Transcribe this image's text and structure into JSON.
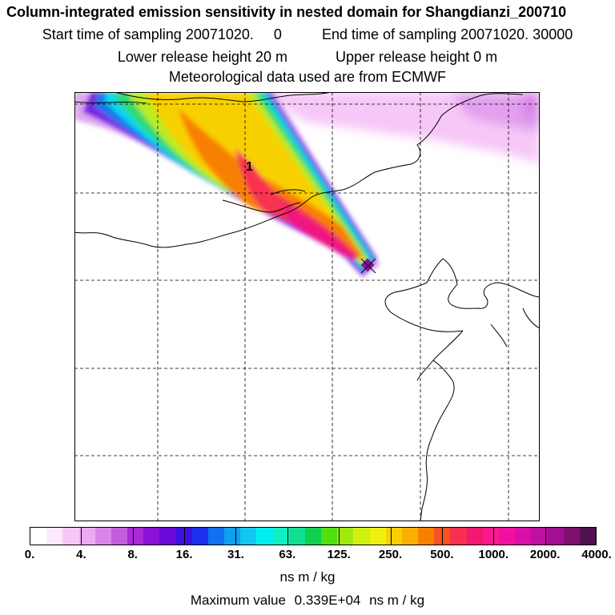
{
  "header": {
    "title": "Column-integrated emission sensitivity in nested domain for Shangdianzi_200710",
    "start_label": "Start time of sampling",
    "start_value": "20071020.     0",
    "end_label": "End time of sampling",
    "end_value": "20071020. 30000",
    "lower_label": "Lower release height",
    "lower_value": "20 m",
    "upper_label": "Upper release height",
    "upper_value": "0 m",
    "met_line": "Meteorological data used are from ECMWF"
  },
  "map": {
    "release_marker_label": "1",
    "grid_lines": "dashed"
  },
  "colorbar": {
    "colors": [
      "#ffffff",
      "#fde9fd",
      "#f7c7f7",
      "#eeaaf0",
      "#d985e8",
      "#c25ee0",
      "#a928d8",
      "#8b10d8",
      "#6a0ad8",
      "#3a10e0",
      "#1e30ee",
      "#1070f0",
      "#10a0f0",
      "#10c8f0",
      "#00f0f0",
      "#10f0c0",
      "#10e090",
      "#10d050",
      "#50e010",
      "#a0e810",
      "#d0f010",
      "#f0f010",
      "#f8d000",
      "#f8b000",
      "#f88000",
      "#f85020",
      "#f83050",
      "#f01870",
      "#f81890",
      "#f010a0",
      "#d810a8",
      "#c010a0",
      "#a01090",
      "#801070",
      "#501050"
    ],
    "ticks": [
      "0.",
      "4.",
      "8.",
      "16.",
      "31.",
      "63.",
      "125.",
      "250.",
      "500.",
      "1000.",
      "2000.",
      "4000."
    ],
    "units": "ns m / kg"
  },
  "footer": {
    "max_label": "Maximum value",
    "max_value": "0.339E+04",
    "max_units": "ns m / kg"
  }
}
